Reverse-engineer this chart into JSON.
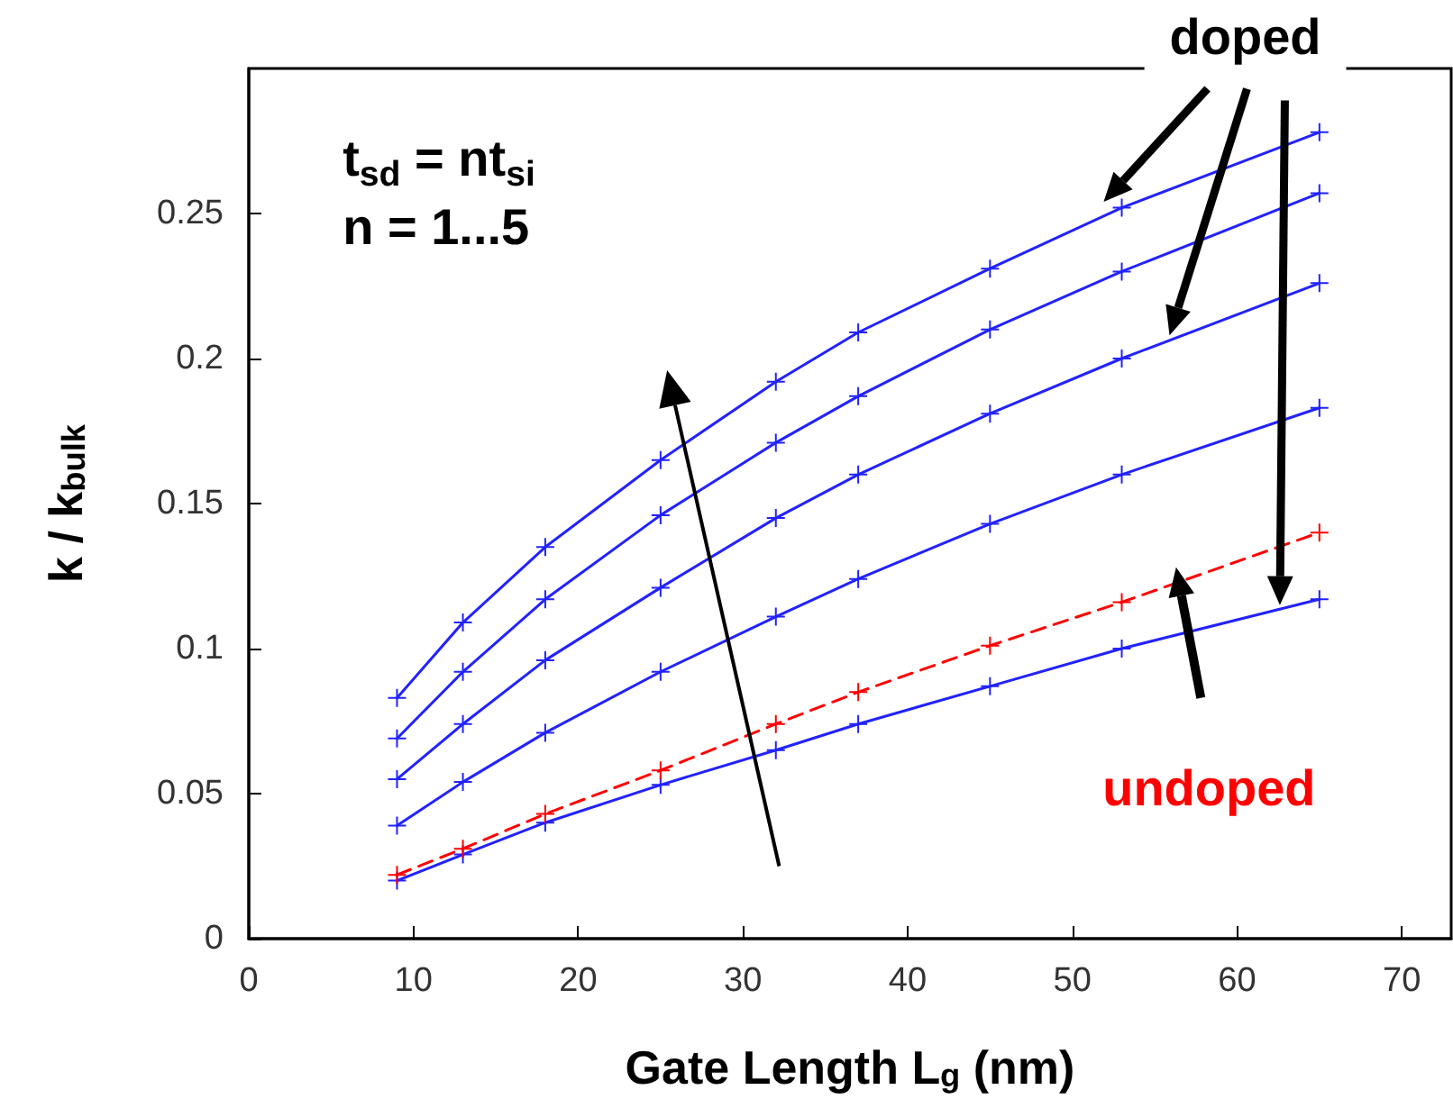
{
  "chart_data": {
    "type": "line",
    "xlabel": "Gate Length L$_{g}$ (nm)",
    "ylabel": "k / k$_{bulk}$",
    "x": [
      9,
      13,
      18,
      25,
      32,
      37,
      45,
      53,
      65
    ],
    "series": [
      {
        "color": "#2222ff",
        "values": [
          0.02,
          0.029,
          0.04,
          0.053,
          0.065,
          0.074,
          0.087,
          0.1,
          0.117
        ]
      },
      {
        "color": "#2222ff",
        "values": [
          0.039,
          0.054,
          0.071,
          0.092,
          0.111,
          0.124,
          0.143,
          0.16,
          0.183
        ]
      },
      {
        "color": "#2222ff",
        "values": [
          0.055,
          0.074,
          0.096,
          0.121,
          0.145,
          0.16,
          0.181,
          0.2,
          0.226
        ]
      },
      {
        "color": "#2222ff",
        "values": [
          0.069,
          0.092,
          0.117,
          0.146,
          0.171,
          0.187,
          0.21,
          0.23,
          0.257
        ]
      },
      {
        "color": "#2222ff",
        "values": [
          0.083,
          0.109,
          0.135,
          0.165,
          0.192,
          0.209,
          0.231,
          0.252,
          0.278
        ]
      },
      {
        "color": "#ff0000",
        "line_style": "dashed",
        "values": [
          0.022,
          0.031,
          0.043,
          0.058,
          0.074,
          0.085,
          0.101,
          0.116,
          0.14
        ]
      }
    ],
    "xlim": [
      0,
      73
    ],
    "xticks": [
      0,
      10,
      20,
      30,
      40,
      50,
      60,
      70
    ],
    "ylim": [
      0,
      0.3
    ],
    "yticks": [
      0,
      0.05,
      0.1,
      0.15,
      0.2,
      0.25
    ],
    "marker": "cross",
    "line_style": "solid",
    "grid": false,
    "annotations": [
      "t$_{sd}$ = nt$_{si}$\nn = 1...5",
      "doped",
      "undoped"
    ]
  }
}
